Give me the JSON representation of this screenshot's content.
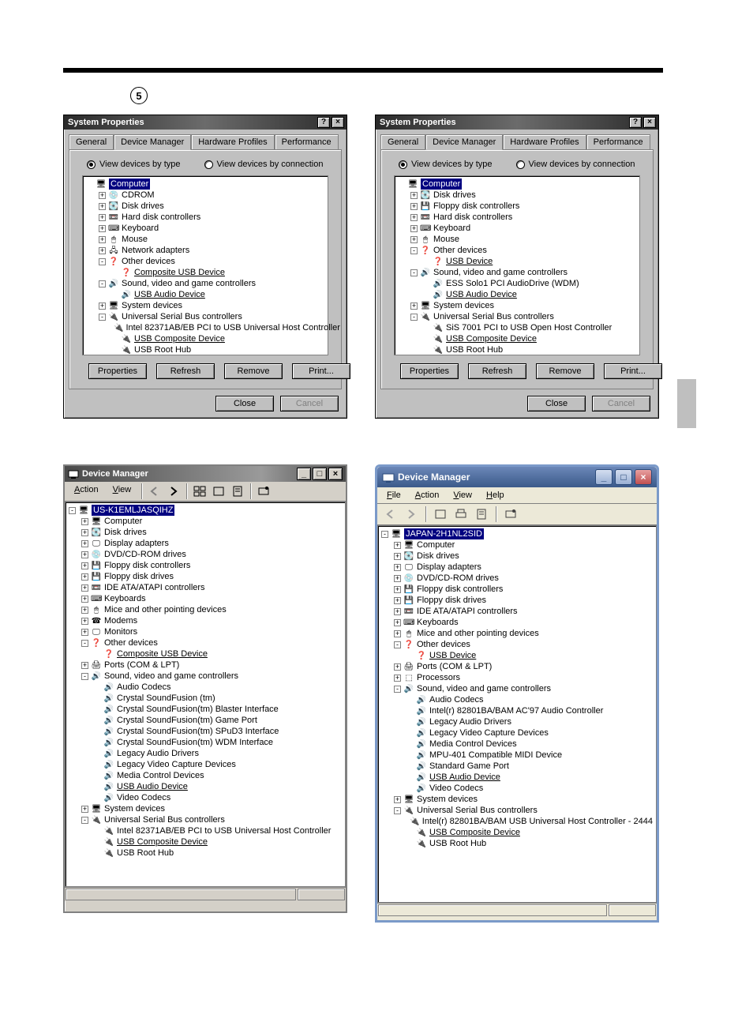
{
  "page": {
    "step_number": "5"
  },
  "colors": {
    "win9x_face": "#c0c0c0",
    "win2k_face": "#d4d0c8",
    "xp_border": "#7b9ac9",
    "highlight": "#000080"
  },
  "sysprops_left": {
    "title": "System Properties",
    "tabs": [
      "General",
      "Device Manager",
      "Hardware Profiles",
      "Performance"
    ],
    "active_tab": 1,
    "radios": {
      "by_type": "View devices by type",
      "by_conn": "View devices by connection",
      "selected": "by_type"
    },
    "buttons": {
      "properties": "Properties",
      "refresh": "Refresh",
      "remove": "Remove",
      "print": "Print..."
    },
    "dialog_buttons": {
      "close": "Close",
      "cancel": "Cancel"
    },
    "tree": [
      {
        "d": 0,
        "pm": "",
        "ic": "pc",
        "t": "Computer",
        "sel": true
      },
      {
        "d": 1,
        "pm": "+",
        "ic": "cd",
        "t": "CDROM"
      },
      {
        "d": 1,
        "pm": "+",
        "ic": "dsk",
        "t": "Disk drives"
      },
      {
        "d": 1,
        "pm": "+",
        "ic": "hdd",
        "t": "Hard disk controllers"
      },
      {
        "d": 1,
        "pm": "+",
        "ic": "kb",
        "t": "Keyboard"
      },
      {
        "d": 1,
        "pm": "+",
        "ic": "ms",
        "t": "Mouse"
      },
      {
        "d": 1,
        "pm": "+",
        "ic": "net",
        "t": "Network adapters"
      },
      {
        "d": 1,
        "pm": "-",
        "ic": "q",
        "t": "Other devices"
      },
      {
        "d": 2,
        "pm": "",
        "ic": "q",
        "t": "Composite USB Device",
        "ul": true
      },
      {
        "d": 1,
        "pm": "-",
        "ic": "snd",
        "t": "Sound, video and game controllers"
      },
      {
        "d": 2,
        "pm": "",
        "ic": "snd",
        "t": "USB Audio Device",
        "ul": true
      },
      {
        "d": 1,
        "pm": "+",
        "ic": "pc",
        "t": "System devices"
      },
      {
        "d": 1,
        "pm": "-",
        "ic": "usb",
        "t": "Universal Serial Bus controllers"
      },
      {
        "d": 2,
        "pm": "",
        "ic": "usb",
        "t": "Intel 82371AB/EB PCI to USB Universal Host Controller"
      },
      {
        "d": 2,
        "pm": "",
        "ic": "usb",
        "t": "USB Composite Device",
        "ul": true
      },
      {
        "d": 2,
        "pm": "",
        "ic": "usb",
        "t": "USB Root Hub"
      }
    ]
  },
  "sysprops_right": {
    "title": "System Properties",
    "tabs": [
      "General",
      "Device Manager",
      "Hardware Profiles",
      "Performance"
    ],
    "active_tab": 1,
    "radios": {
      "by_type": "View devices by type",
      "by_conn": "View devices by connection",
      "selected": "by_type"
    },
    "buttons": {
      "properties": "Properties",
      "refresh": "Refresh",
      "remove": "Remove",
      "print": "Print..."
    },
    "dialog_buttons": {
      "close": "Close",
      "cancel": "Cancel"
    },
    "tree": [
      {
        "d": 0,
        "pm": "",
        "ic": "pc",
        "t": "Computer",
        "sel": true
      },
      {
        "d": 1,
        "pm": "+",
        "ic": "dsk",
        "t": "Disk drives"
      },
      {
        "d": 1,
        "pm": "+",
        "ic": "fdd",
        "t": "Floppy disk controllers"
      },
      {
        "d": 1,
        "pm": "+",
        "ic": "hdd",
        "t": "Hard disk controllers"
      },
      {
        "d": 1,
        "pm": "+",
        "ic": "kb",
        "t": "Keyboard"
      },
      {
        "d": 1,
        "pm": "+",
        "ic": "ms",
        "t": "Mouse"
      },
      {
        "d": 1,
        "pm": "-",
        "ic": "q",
        "t": "Other devices"
      },
      {
        "d": 2,
        "pm": "",
        "ic": "q",
        "t": "USB Device",
        "ul": true
      },
      {
        "d": 1,
        "pm": "-",
        "ic": "snd",
        "t": "Sound, video and game controllers"
      },
      {
        "d": 2,
        "pm": "",
        "ic": "snd",
        "t": "ESS Solo1 PCI AudioDrive (WDM)"
      },
      {
        "d": 2,
        "pm": "",
        "ic": "snd",
        "t": "USB Audio Device",
        "ul": true
      },
      {
        "d": 1,
        "pm": "+",
        "ic": "pc",
        "t": "System devices"
      },
      {
        "d": 1,
        "pm": "-",
        "ic": "usb",
        "t": "Universal Serial Bus controllers"
      },
      {
        "d": 2,
        "pm": "",
        "ic": "usb",
        "t": "SiS 7001 PCI to USB Open Host Controller"
      },
      {
        "d": 2,
        "pm": "",
        "ic": "usb",
        "t": "USB Composite Device",
        "ul": true
      },
      {
        "d": 2,
        "pm": "",
        "ic": "usb",
        "t": "USB Root Hub"
      }
    ]
  },
  "devmgr_2k": {
    "title": "Device Manager",
    "menus": [
      "Action",
      "View"
    ],
    "root": "US-K1EMLJASQIHZ",
    "tree": [
      {
        "d": 1,
        "pm": "+",
        "ic": "pc",
        "t": "Computer"
      },
      {
        "d": 1,
        "pm": "+",
        "ic": "dsk",
        "t": "Disk drives"
      },
      {
        "d": 1,
        "pm": "+",
        "ic": "mon",
        "t": "Display adapters"
      },
      {
        "d": 1,
        "pm": "+",
        "ic": "cd",
        "t": "DVD/CD-ROM drives"
      },
      {
        "d": 1,
        "pm": "+",
        "ic": "fdd",
        "t": "Floppy disk controllers"
      },
      {
        "d": 1,
        "pm": "+",
        "ic": "fdd",
        "t": "Floppy disk drives"
      },
      {
        "d": 1,
        "pm": "+",
        "ic": "hdd",
        "t": "IDE ATA/ATAPI controllers"
      },
      {
        "d": 1,
        "pm": "+",
        "ic": "kb",
        "t": "Keyboards"
      },
      {
        "d": 1,
        "pm": "+",
        "ic": "ms",
        "t": "Mice and other pointing devices"
      },
      {
        "d": 1,
        "pm": "+",
        "ic": "mdm",
        "t": "Modems"
      },
      {
        "d": 1,
        "pm": "+",
        "ic": "mon",
        "t": "Monitors"
      },
      {
        "d": 1,
        "pm": "-",
        "ic": "q",
        "t": "Other devices"
      },
      {
        "d": 2,
        "pm": "",
        "ic": "q",
        "t": "Composite USB Device",
        "ul": true
      },
      {
        "d": 1,
        "pm": "+",
        "ic": "prt",
        "t": "Ports (COM & LPT)"
      },
      {
        "d": 1,
        "pm": "-",
        "ic": "snd",
        "t": "Sound, video and game controllers"
      },
      {
        "d": 2,
        "pm": "",
        "ic": "snd",
        "t": "Audio Codecs"
      },
      {
        "d": 2,
        "pm": "",
        "ic": "snd",
        "t": "Crystal SoundFusion (tm)"
      },
      {
        "d": 2,
        "pm": "",
        "ic": "snd",
        "t": "Crystal SoundFusion(tm) Blaster Interface"
      },
      {
        "d": 2,
        "pm": "",
        "ic": "snd",
        "t": "Crystal SoundFusion(tm) Game Port"
      },
      {
        "d": 2,
        "pm": "",
        "ic": "snd",
        "t": "Crystal SoundFusion(tm) SPuD3 Interface"
      },
      {
        "d": 2,
        "pm": "",
        "ic": "snd",
        "t": "Crystal SoundFusion(tm) WDM Interface"
      },
      {
        "d": 2,
        "pm": "",
        "ic": "snd",
        "t": "Legacy Audio Drivers"
      },
      {
        "d": 2,
        "pm": "",
        "ic": "snd",
        "t": "Legacy Video Capture Devices"
      },
      {
        "d": 2,
        "pm": "",
        "ic": "snd",
        "t": "Media Control Devices"
      },
      {
        "d": 2,
        "pm": "",
        "ic": "snd",
        "t": "USB Audio Device",
        "ul": true
      },
      {
        "d": 2,
        "pm": "",
        "ic": "snd",
        "t": "Video Codecs"
      },
      {
        "d": 1,
        "pm": "+",
        "ic": "pc",
        "t": "System devices"
      },
      {
        "d": 1,
        "pm": "-",
        "ic": "usb",
        "t": "Universal Serial Bus controllers"
      },
      {
        "d": 2,
        "pm": "",
        "ic": "usb",
        "t": "Intel 82371AB/EB PCI to USB Universal Host Controller"
      },
      {
        "d": 2,
        "pm": "",
        "ic": "usb",
        "t": "USB Composite Device",
        "ul": true
      },
      {
        "d": 2,
        "pm": "",
        "ic": "usb",
        "t": "USB Root Hub"
      }
    ]
  },
  "devmgr_xp": {
    "title": "Device Manager",
    "menus": [
      "File",
      "Action",
      "View",
      "Help"
    ],
    "root": "JAPAN-2H1NL2SID",
    "tree": [
      {
        "d": 1,
        "pm": "+",
        "ic": "pc",
        "t": "Computer"
      },
      {
        "d": 1,
        "pm": "+",
        "ic": "dsk",
        "t": "Disk drives"
      },
      {
        "d": 1,
        "pm": "+",
        "ic": "mon",
        "t": "Display adapters"
      },
      {
        "d": 1,
        "pm": "+",
        "ic": "cd",
        "t": "DVD/CD-ROM drives"
      },
      {
        "d": 1,
        "pm": "+",
        "ic": "fdd",
        "t": "Floppy disk controllers"
      },
      {
        "d": 1,
        "pm": "+",
        "ic": "fdd",
        "t": "Floppy disk drives"
      },
      {
        "d": 1,
        "pm": "+",
        "ic": "hdd",
        "t": "IDE ATA/ATAPI controllers"
      },
      {
        "d": 1,
        "pm": "+",
        "ic": "kb",
        "t": "Keyboards"
      },
      {
        "d": 1,
        "pm": "+",
        "ic": "ms",
        "t": "Mice and other pointing devices"
      },
      {
        "d": 1,
        "pm": "-",
        "ic": "q",
        "t": "Other devices"
      },
      {
        "d": 2,
        "pm": "",
        "ic": "q",
        "t": "USB Device",
        "ul": true
      },
      {
        "d": 1,
        "pm": "+",
        "ic": "prt",
        "t": "Ports (COM & LPT)"
      },
      {
        "d": 1,
        "pm": "+",
        "ic": "cpu",
        "t": "Processors"
      },
      {
        "d": 1,
        "pm": "-",
        "ic": "snd",
        "t": "Sound, video and game controllers"
      },
      {
        "d": 2,
        "pm": "",
        "ic": "snd",
        "t": "Audio Codecs"
      },
      {
        "d": 2,
        "pm": "",
        "ic": "snd",
        "t": "Intel(r) 82801BA/BAM AC'97 Audio Controller"
      },
      {
        "d": 2,
        "pm": "",
        "ic": "snd",
        "t": "Legacy Audio Drivers"
      },
      {
        "d": 2,
        "pm": "",
        "ic": "snd",
        "t": "Legacy Video Capture Devices"
      },
      {
        "d": 2,
        "pm": "",
        "ic": "snd",
        "t": "Media Control Devices"
      },
      {
        "d": 2,
        "pm": "",
        "ic": "snd",
        "t": "MPU-401 Compatible MIDI Device"
      },
      {
        "d": 2,
        "pm": "",
        "ic": "snd",
        "t": "Standard Game Port"
      },
      {
        "d": 2,
        "pm": "",
        "ic": "snd",
        "t": "USB Audio Device",
        "ul": true
      },
      {
        "d": 2,
        "pm": "",
        "ic": "snd",
        "t": "Video Codecs"
      },
      {
        "d": 1,
        "pm": "+",
        "ic": "pc",
        "t": "System devices"
      },
      {
        "d": 1,
        "pm": "-",
        "ic": "usb",
        "t": "Universal Serial Bus controllers"
      },
      {
        "d": 2,
        "pm": "",
        "ic": "usb",
        "t": "Intel(r) 82801BA/BAM USB Universal Host Controller - 2444"
      },
      {
        "d": 2,
        "pm": "",
        "ic": "usb",
        "t": "USB Composite Device",
        "ul": true
      },
      {
        "d": 2,
        "pm": "",
        "ic": "usb",
        "t": "USB Root Hub"
      }
    ]
  },
  "icons": {
    "pc": "🖥",
    "cd": "💿",
    "dsk": "💽",
    "hdd": "📼",
    "kb": "⌨",
    "ms": "🖱",
    "net": "🖧",
    "q": "❓",
    "snd": "🔊",
    "usb": "🔌",
    "fdd": "💾",
    "mon": "🖵",
    "mdm": "☎",
    "prt": "🖨",
    "cpu": "⬚"
  }
}
